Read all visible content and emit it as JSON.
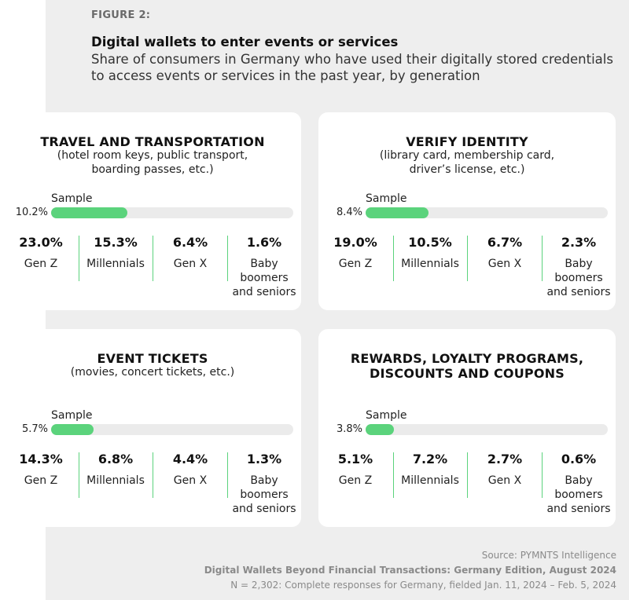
{
  "figure_label": "FIGURE 2:",
  "title": "Digital wallets to enter events or services",
  "subtitle": "Share of consumers in Germany who have used their digitally stored credentials to access events or services in the past year, by generation",
  "chart_data": [
    {
      "type": "bar",
      "title": "TRAVEL AND TRANSPORTATION",
      "subtitle_lines": [
        "(hotel room keys, public transport,",
        "boarding passes, etc.)"
      ],
      "sample_label": "Sample",
      "sample_value": 10.2,
      "sample_text": "10.2%",
      "categories": [
        "Gen Z",
        "Millennials",
        "Gen X",
        "Baby boomers and seniors"
      ],
      "values": [
        23.0,
        15.3,
        6.4,
        1.6
      ],
      "value_texts": [
        "23.0%",
        "15.3%",
        "6.4%",
        "1.6%"
      ]
    },
    {
      "type": "bar",
      "title": "VERIFY IDENTITY",
      "subtitle_lines": [
        "(library card, membership card,",
        "driver’s license, etc.)"
      ],
      "sample_label": "Sample",
      "sample_value": 8.4,
      "sample_text": "8.4%",
      "categories": [
        "Gen Z",
        "Millennials",
        "Gen X",
        "Baby boomers and seniors"
      ],
      "values": [
        19.0,
        10.5,
        6.7,
        2.3
      ],
      "value_texts": [
        "19.0%",
        "10.5%",
        "6.7%",
        "2.3%"
      ]
    },
    {
      "type": "bar",
      "title": "EVENT TICKETS",
      "subtitle_lines": [
        "(movies, concert tickets, etc.)"
      ],
      "sample_label": "Sample",
      "sample_value": 5.7,
      "sample_text": "5.7%",
      "categories": [
        "Gen Z",
        "Millennials",
        "Gen X",
        "Baby boomers and seniors"
      ],
      "values": [
        14.3,
        6.8,
        4.4,
        1.3
      ],
      "value_texts": [
        "14.3%",
        "6.8%",
        "4.4%",
        "1.3%"
      ]
    },
    {
      "type": "bar",
      "title": "REWARDS, LOYALTY PROGRAMS,\nDISCOUNTS AND COUPONS",
      "subtitle_lines": [],
      "sample_label": "Sample",
      "sample_value": 3.8,
      "sample_text": "3.8%",
      "categories": [
        "Gen Z",
        "Millennials",
        "Gen X",
        "Baby boomers and seniors"
      ],
      "values": [
        5.1,
        7.2,
        2.7,
        0.6
      ],
      "value_texts": [
        "5.1%",
        "7.2%",
        "2.7%",
        "0.6%"
      ]
    }
  ],
  "colors": {
    "accent": "#5bd37c",
    "track": "#ebebeb",
    "panel": "#eeeeee"
  },
  "footer": {
    "source": "Source: PYMNTS Intelligence",
    "report": "Digital Wallets Beyond Financial Transactions: Germany Edition, August 2024",
    "note": "N = 2,302: Complete responses for Germany, fielded Jan. 11, 2024 – Feb. 5, 2024"
  }
}
